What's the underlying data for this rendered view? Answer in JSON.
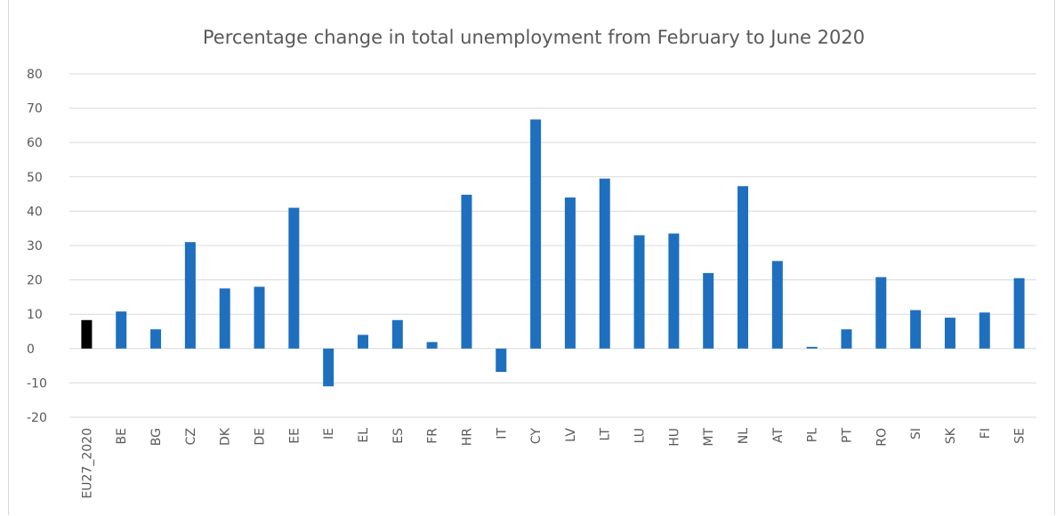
{
  "chart_data": {
    "type": "bar",
    "title": "Percentage change in total unemployment  from February to June 2020",
    "xlabel": "",
    "ylabel": "",
    "ylim": [
      -20,
      80
    ],
    "yticks": [
      80,
      70,
      60,
      50,
      40,
      30,
      20,
      10,
      0,
      -10,
      -20
    ],
    "grid": true,
    "legend": "none",
    "categories": [
      "EU27_2020",
      "BE",
      "BG",
      "CZ",
      "DK",
      "DE",
      "EE",
      "IE",
      "EL",
      "ES",
      "FR",
      "HR",
      "IT",
      "CY",
      "LV",
      "LT",
      "LU",
      "HU",
      "MT",
      "NL",
      "AT",
      "PL",
      "PT",
      "RO",
      "SI",
      "SK",
      "FI",
      "SE"
    ],
    "values": [
      8.3,
      10.8,
      5.6,
      31.0,
      17.5,
      18.0,
      41.0,
      -11.0,
      4.0,
      8.3,
      1.9,
      44.8,
      -6.8,
      66.7,
      44.0,
      49.5,
      33.0,
      33.5,
      22.0,
      47.3,
      25.5,
      0.5,
      5.6,
      20.8,
      11.2,
      9.0,
      10.5,
      20.5
    ],
    "colors": {
      "aggregate": "#000000",
      "country": "#1f6fbf",
      "grid": "#d9d9d9",
      "text": "#595959"
    },
    "highlight_category": "EU27_2020"
  }
}
